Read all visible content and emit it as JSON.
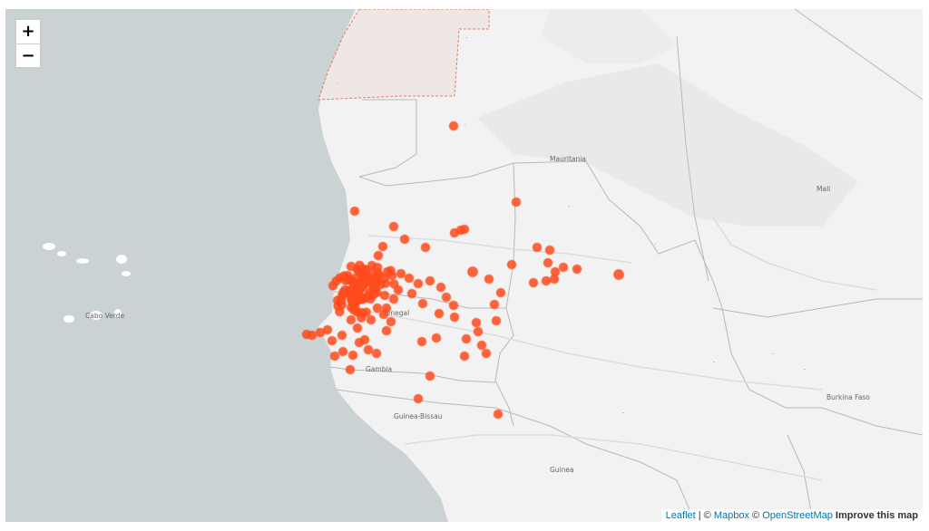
{
  "map": {
    "zoom_in_label": "+",
    "zoom_out_label": "−",
    "country_labels": [
      "Mauritania",
      "Mali",
      "Senegal",
      "Gambia",
      "Guinea-Bissau",
      "Guinea",
      "Burkina Faso",
      "Cabo Verde"
    ],
    "attribution": {
      "leaflet": "Leaflet",
      "sep1": " | © ",
      "mapbox": "Mapbox",
      "sep2": " © ",
      "osm": "OpenStreetMap",
      "improve": "Improve this map"
    },
    "colors": {
      "water": "#cbd2d3",
      "land": "#f2f2f2",
      "border": "#b8b8b8",
      "disputed_fill": "#efe7e3",
      "disputed_border": "#e07a66",
      "marker": "#ff4a1c"
    }
  }
}
